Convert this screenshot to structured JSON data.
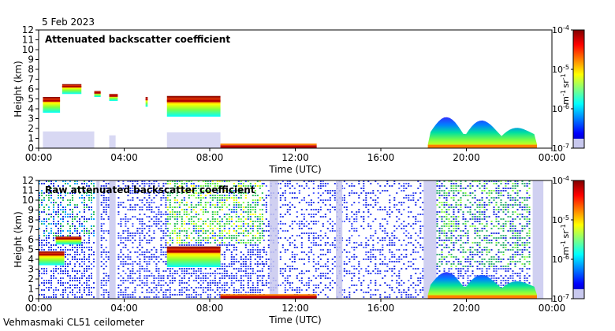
{
  "header": {
    "date": "5 Feb 2023"
  },
  "footer": {
    "instrument": "Vehmasmaki CL51 ceilometer"
  },
  "colors": {
    "jet": [
      "#00007f",
      "#0000ff",
      "#0080ff",
      "#00ffff",
      "#80ff80",
      "#ffff00",
      "#ff8000",
      "#ff0000",
      "#7f0000"
    ],
    "noise": "#c8c8ee",
    "background": "#ffffff"
  },
  "chart_data": [
    {
      "type": "heatmap",
      "title": "Attenuated backscatter coefficient",
      "xlabel": "Time (UTC)",
      "ylabel": "Height (km)",
      "x_ticks": [
        "00:00",
        "04:00",
        "08:00",
        "12:00",
        "16:00",
        "20:00",
        "00:00"
      ],
      "x_range_hours": [
        0,
        24
      ],
      "y_ticks": [
        0,
        1,
        2,
        3,
        4,
        5,
        6,
        7,
        8,
        9,
        10,
        11,
        12
      ],
      "ylim": [
        0,
        12
      ],
      "colorbar": {
        "scale": "log",
        "range": [
          1e-07,
          0.0001
        ],
        "ticks": [
          "10-7",
          "10-6",
          "10-5",
          "10-4"
        ],
        "unit": "m-1 sr-1"
      },
      "features": [
        {
          "kind": "cloud-layer",
          "time_hours": [
            0.2,
            1.0
          ],
          "height_km": [
            3.6,
            5.2
          ]
        },
        {
          "kind": "cloud-layer",
          "time_hours": [
            1.1,
            2.0
          ],
          "height_km": [
            5.5,
            6.5
          ]
        },
        {
          "kind": "cloud-layer",
          "time_hours": [
            2.6,
            2.9
          ],
          "height_km": [
            5.2,
            5.8
          ]
        },
        {
          "kind": "cloud-layer",
          "time_hours": [
            3.3,
            3.7
          ],
          "height_km": [
            4.8,
            5.5
          ]
        },
        {
          "kind": "cloud-layer",
          "time_hours": [
            5.0,
            5.1
          ],
          "height_km": [
            4.2,
            5.2
          ]
        },
        {
          "kind": "cloud-layer",
          "time_hours": [
            6.0,
            8.5
          ],
          "height_km": [
            3.2,
            5.3
          ]
        },
        {
          "kind": "surface-layer",
          "time_hours": [
            8.5,
            13.0
          ],
          "height_km": [
            0.0,
            0.3
          ]
        },
        {
          "kind": "boundary-layer",
          "time_hours": [
            18.2,
            23.3
          ],
          "height_km": [
            0.0,
            3.5
          ]
        },
        {
          "kind": "noise",
          "time_hours": [
            0,
            8.5
          ],
          "height_km": [
            0.0,
            1.7
          ]
        }
      ]
    },
    {
      "type": "heatmap",
      "title": "Raw attenuated backscatter coefficient",
      "xlabel": "Time (UTC)",
      "ylabel": "Height (km)",
      "x_ticks": [
        "00:00",
        "04:00",
        "08:00",
        "12:00",
        "16:00",
        "20:00",
        "00:00"
      ],
      "x_range_hours": [
        0,
        24
      ],
      "y_ticks": [
        0,
        1,
        2,
        3,
        4,
        5,
        6,
        7,
        8,
        9,
        10,
        11,
        12
      ],
      "ylim": [
        0,
        12
      ],
      "colorbar": {
        "scale": "log",
        "range": [
          1e-07,
          0.0001
        ],
        "ticks": [
          "10-7",
          "10-6",
          "10-5",
          "10-4"
        ],
        "unit": "m-1 sr-1"
      },
      "features": [
        {
          "kind": "cloud-layer",
          "time_hours": [
            0.0,
            1.2
          ],
          "height_km": [
            3.4,
            4.8
          ]
        },
        {
          "kind": "cloud-layer",
          "time_hours": [
            0.8,
            2.0
          ],
          "height_km": [
            5.5,
            6.3
          ]
        },
        {
          "kind": "cloud-layer",
          "time_hours": [
            6.0,
            8.5
          ],
          "height_km": [
            3.2,
            5.3
          ]
        },
        {
          "kind": "surface-layer",
          "time_hours": [
            8.5,
            13.0
          ],
          "height_km": [
            0.0,
            0.3
          ]
        },
        {
          "kind": "boundary-layer",
          "time_hours": [
            18.2,
            23.3
          ],
          "height_km": [
            0.0,
            3.0
          ]
        }
      ]
    }
  ]
}
